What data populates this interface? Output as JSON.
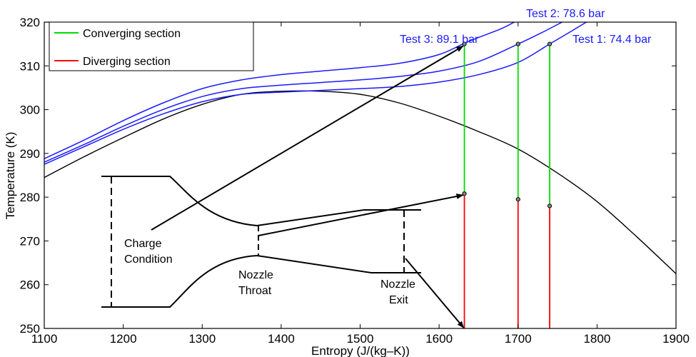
{
  "chart_data": {
    "type": "line",
    "xlabel": "Entropy (J/(kg–K))",
    "ylabel": "Temperature (K)",
    "xlim": [
      1100,
      1900
    ],
    "ylim": [
      250,
      320
    ],
    "xticks": [
      1100,
      1200,
      1300,
      1400,
      1500,
      1600,
      1700,
      1800,
      1900
    ],
    "yticks": [
      250,
      260,
      270,
      280,
      290,
      300,
      310,
      320
    ],
    "grid": false,
    "legend": {
      "position": "top-left",
      "entries": [
        {
          "label": "Converging section",
          "color": "#00dd00"
        },
        {
          "label": "Diverging section",
          "color": "#ff0000"
        }
      ]
    },
    "saturation_dome": {
      "color": "#000000",
      "x": [
        1100,
        1150,
        1200,
        1250,
        1300,
        1350,
        1400,
        1450,
        1500,
        1550,
        1600,
        1650,
        1700,
        1750,
        1800,
        1850,
        1900
      ],
      "y": [
        284.5,
        289.2,
        293.6,
        297.8,
        301.2,
        303.5,
        304.2,
        304.2,
        303.5,
        301.5,
        298.5,
        295.0,
        291.0,
        285.5,
        279.0,
        271.0,
        262.5
      ]
    },
    "isobars": [
      {
        "label": "Test 1: 74.4 bar",
        "color": "#1a1aff",
        "x": [
          1100,
          1150,
          1200,
          1250,
          1300,
          1350,
          1400,
          1450,
          1500,
          1550,
          1600,
          1650,
          1700,
          1740,
          1770,
          1800
        ],
        "y": [
          287.5,
          291.5,
          295.5,
          299.0,
          301.8,
          303.5,
          304.0,
          304.4,
          304.8,
          305.3,
          306.3,
          308.0,
          310.8,
          315.0,
          318.2,
          321.5
        ]
      },
      {
        "label": "Test 2: 78.6 bar",
        "color": "#1a1aff",
        "x": [
          1100,
          1150,
          1200,
          1250,
          1300,
          1350,
          1400,
          1450,
          1500,
          1550,
          1600,
          1650,
          1700,
          1730,
          1760,
          1770
        ],
        "y": [
          288.0,
          292.0,
          296.2,
          300.0,
          303.0,
          304.8,
          305.6,
          306.2,
          306.8,
          307.6,
          308.8,
          311.0,
          315.0,
          317.6,
          320.4,
          321.3
        ]
      },
      {
        "label": "Test 3: 89.1 bar",
        "color": "#1a1aff",
        "x": [
          1100,
          1150,
          1200,
          1250,
          1300,
          1350,
          1400,
          1450,
          1500,
          1550,
          1600,
          1630,
          1650,
          1680,
          1700
        ],
        "y": [
          288.8,
          293.0,
          297.5,
          301.5,
          304.8,
          306.8,
          308.0,
          308.8,
          309.6,
          310.6,
          312.6,
          315.0,
          316.5,
          318.6,
          320.5
        ]
      }
    ],
    "tests": [
      {
        "name": "Test 3",
        "entropy": 1632,
        "charge_T": 315.0,
        "throat_T": 280.8,
        "exit_T": 250
      },
      {
        "name": "Test 2",
        "entropy": 1700,
        "charge_T": 315.0,
        "throat_T": 279.5,
        "exit_T": 250
      },
      {
        "name": "Test 1",
        "entropy": 1740,
        "charge_T": 315.0,
        "throat_T": 278.0,
        "exit_T": 250
      }
    ],
    "converging_color": "#00dd00",
    "diverging_color": "#ff0000",
    "test_label_color": "#1a1aff",
    "annotations": {
      "charge": [
        "Charge",
        "Condition"
      ],
      "throat": [
        "Nozzle",
        "Throat"
      ],
      "exit": [
        "Nozzle",
        "Exit"
      ]
    }
  }
}
